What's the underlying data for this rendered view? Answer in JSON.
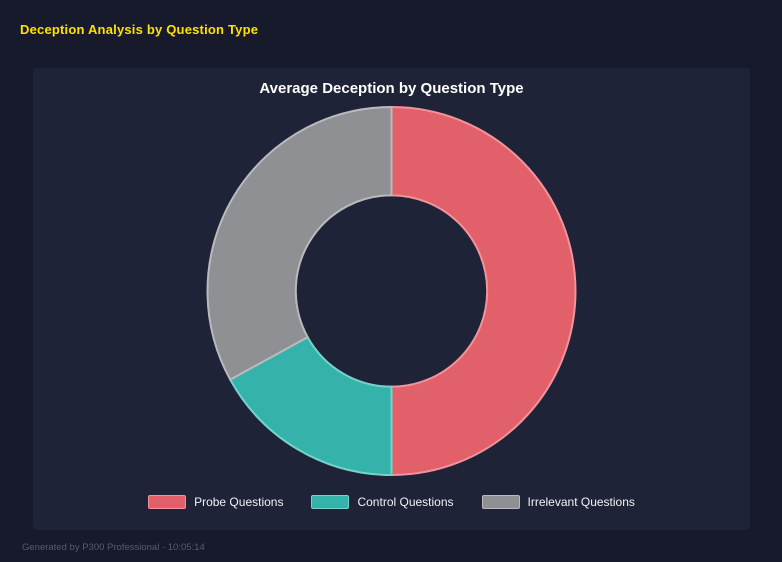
{
  "page": {
    "title": "Deception Analysis by Question Type",
    "footer": "Generated by P300 Professional - 10:05:14"
  },
  "colors": {
    "background": "#171a2b",
    "panel": "#1f2337",
    "header_yellow": "#ffe100",
    "chart_title": "#ffffff",
    "footer_gray": "#565b6b"
  },
  "chart_data": {
    "type": "pie",
    "subtype": "donut",
    "title": "Average Deception by Question Type",
    "categories": [
      "Probe Questions",
      "Control Questions",
      "Irrelevant Questions"
    ],
    "values": [
      50,
      17,
      33
    ],
    "unit": "percent_of_total",
    "colors": [
      "#e2606a",
      "#35b2aa",
      "#8f9094"
    ],
    "border_colors": [
      "#f2939b",
      "#74d4cc",
      "#b9b9be"
    ],
    "donut_hole_ratio": 0.52,
    "start_angle_deg": 0,
    "direction": "clockwise",
    "legend_position": "bottom",
    "grid": false
  }
}
